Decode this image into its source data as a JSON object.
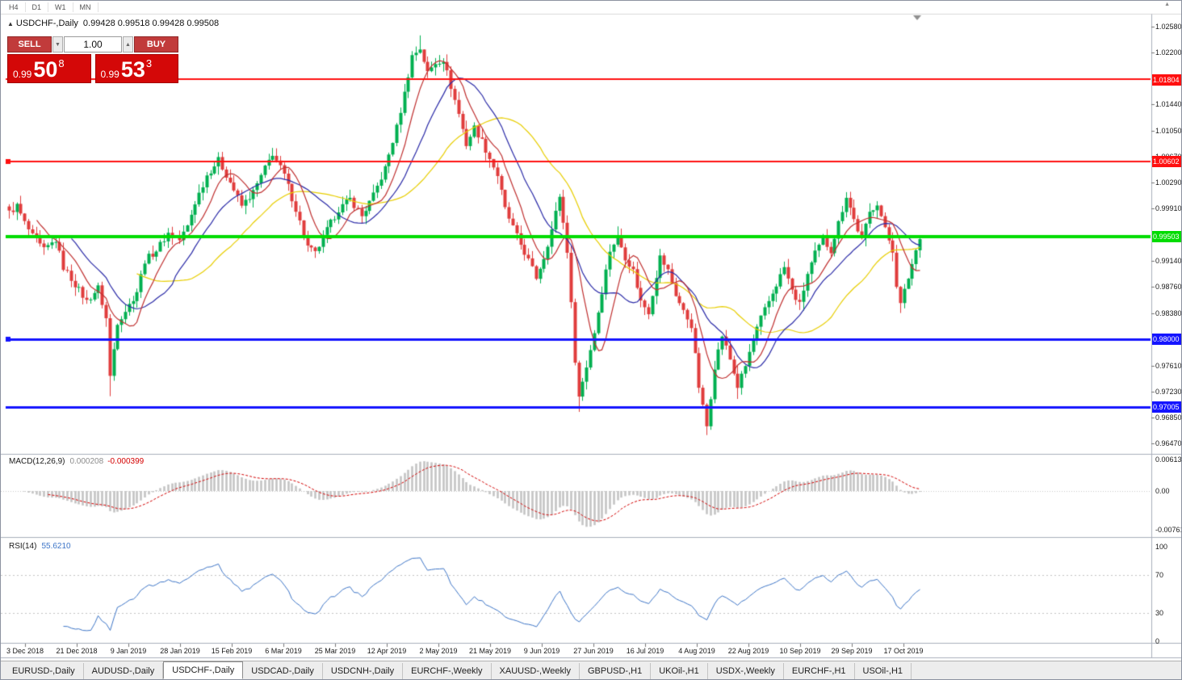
{
  "toolbar": {
    "timeframes": [
      "H4",
      "D1",
      "W1",
      "MN"
    ],
    "collapse_icon": "▲"
  },
  "chart": {
    "title_symbol": "USDCHF-,Daily",
    "ohlc": "0.99428 0.99518 0.99428 0.99508",
    "trade_panel": {
      "sell_label": "SELL",
      "buy_label": "BUY",
      "volume": "1.00",
      "bid": {
        "prefix": "0.99",
        "big": "50",
        "sup": "8"
      },
      "ask": {
        "prefix": "0.99",
        "big": "53",
        "sup": "3"
      }
    }
  },
  "chart_data": {
    "type": "candlestick",
    "symbol": "USDCHF-",
    "timeframe": "Daily",
    "title": "USDCHF-,Daily 0.99428 0.99518 0.99428 0.99508",
    "price_range": [
      0.9635,
      1.0272
    ],
    "bars": 236,
    "colors": {
      "bull": "#00B050",
      "bear": "#E03C3C"
    },
    "y_ticks": [
      "1.02580",
      "1.02200",
      "1.01440",
      "1.01050",
      "1.00670",
      "1.00290",
      "0.99910",
      "0.99140",
      "0.98760",
      "0.98380",
      "0.97610",
      "0.97230",
      "0.96850",
      "0.96470"
    ],
    "x_labels": [
      "3 Dec 2018",
      "21 Dec 2018",
      "9 Jan 2019",
      "28 Jan 2019",
      "15 Feb 2019",
      "6 Mar 2019",
      "25 Mar 2019",
      "12 Apr 2019",
      "2 May 2019",
      "21 May 2019",
      "9 Jun 2019",
      "27 Jun 2019",
      "16 Jul 2019",
      "4 Aug 2019",
      "22 Aug 2019",
      "10 Sep 2019",
      "29 Sep 2019",
      "17 Oct 2019"
    ],
    "anchors": [
      [
        0,
        0.9985
      ],
      [
        2,
        0.9995
      ],
      [
        4,
        0.997
      ],
      [
        6,
        0.995
      ],
      [
        9,
        0.993
      ],
      [
        12,
        0.9945
      ],
      [
        14,
        0.9905
      ],
      [
        17,
        0.988
      ],
      [
        20,
        0.9855
      ],
      [
        23,
        0.9875
      ],
      [
        25,
        0.983
      ],
      [
        26,
        0.9745
      ],
      [
        28,
        0.9825
      ],
      [
        31,
        0.985
      ],
      [
        33,
        0.987
      ],
      [
        35,
        0.9915
      ],
      [
        38,
        0.993
      ],
      [
        41,
        0.9955
      ],
      [
        44,
        0.9945
      ],
      [
        46,
        0.9965
      ],
      [
        48,
        1.0
      ],
      [
        51,
        1.004
      ],
      [
        54,
        1.0062
      ],
      [
        57,
        1.003
      ],
      [
        60,
        0.9995
      ],
      [
        63,
        1.0015
      ],
      [
        66,
        1.005
      ],
      [
        68,
        1.0072
      ],
      [
        71,
        1.004
      ],
      [
        74,
        0.999
      ],
      [
        77,
        0.9935
      ],
      [
        79,
        0.9925
      ],
      [
        82,
        0.996
      ],
      [
        85,
        0.999
      ],
      [
        88,
        1.0005
      ],
      [
        91,
        0.998
      ],
      [
        94,
        1.001
      ],
      [
        97,
        1.005
      ],
      [
        100,
        1.011
      ],
      [
        102,
        1.016
      ],
      [
        104,
        1.0215
      ],
      [
        106,
        1.0226
      ],
      [
        108,
        1.019
      ],
      [
        110,
        1.0205
      ],
      [
        112,
        1.021
      ],
      [
        114,
        1.017
      ],
      [
        116,
        1.013
      ],
      [
        118,
        1.0085
      ],
      [
        120,
        1.011
      ],
      [
        122,
        1.009
      ],
      [
        124,
        1.0065
      ],
      [
        126,
        1.004
      ],
      [
        128,
        0.999
      ],
      [
        131,
        0.995
      ],
      [
        134,
        0.9915
      ],
      [
        136,
        0.989
      ],
      [
        138,
        0.992
      ],
      [
        140,
        0.996
      ],
      [
        142,
        1.001
      ],
      [
        144,
        0.993
      ],
      [
        145,
        0.985
      ],
      [
        146,
        0.977
      ],
      [
        147,
        0.9715
      ],
      [
        149,
        0.976
      ],
      [
        151,
        0.981
      ],
      [
        153,
        0.987
      ],
      [
        155,
        0.993
      ],
      [
        157,
        0.995
      ],
      [
        159,
        0.992
      ],
      [
        161,
        0.99
      ],
      [
        163,
        0.9855
      ],
      [
        165,
        0.984
      ],
      [
        168,
        0.992
      ],
      [
        170,
        0.99
      ],
      [
        172,
        0.9865
      ],
      [
        174,
        0.984
      ],
      [
        176,
        0.982
      ],
      [
        177,
        0.9775
      ],
      [
        178,
        0.973
      ],
      [
        179,
        0.97
      ],
      [
        180,
        0.9672
      ],
      [
        182,
        0.976
      ],
      [
        184,
        0.9805
      ],
      [
        186,
        0.977
      ],
      [
        188,
        0.973
      ],
      [
        190,
        0.976
      ],
      [
        192,
        0.98
      ],
      [
        194,
        0.983
      ],
      [
        196,
        0.9855
      ],
      [
        198,
        0.988
      ],
      [
        200,
        0.9905
      ],
      [
        202,
        0.987
      ],
      [
        204,
        0.985
      ],
      [
        206,
        0.9895
      ],
      [
        208,
        0.9925
      ],
      [
        210,
        0.9945
      ],
      [
        212,
        0.993
      ],
      [
        214,
        0.997
      ],
      [
        216,
        1.001
      ],
      [
        218,
        0.9975
      ],
      [
        220,
        0.9945
      ],
      [
        222,
        0.9985
      ],
      [
        224,
        1.0
      ],
      [
        226,
        0.996
      ],
      [
        228,
        0.993
      ],
      [
        229,
        0.988
      ],
      [
        230,
        0.985
      ],
      [
        232,
        0.989
      ],
      [
        234,
        0.993
      ],
      [
        235,
        0.9951
      ]
    ],
    "spikes": [
      {
        "bar": 26,
        "low": 0.9716
      },
      {
        "bar": 106,
        "high": 1.0245
      },
      {
        "bar": 147,
        "low": 0.9693
      },
      {
        "bar": 180,
        "low": 0.9659
      },
      {
        "bar": 188,
        "low": 0.9712
      },
      {
        "bar": 230,
        "low": 0.9838
      }
    ],
    "hlines": [
      {
        "price": 1.01804,
        "label": "1.01804",
        "color": "#FF1010",
        "width": 2,
        "marker": false
      },
      {
        "price": 1.00602,
        "label": "1.00602",
        "color": "#FF1010",
        "width": 2,
        "marker": true
      },
      {
        "price": 0.99503,
        "label": "0.99503",
        "color": "#00DC00",
        "width": 4,
        "marker": false
      },
      {
        "price": 0.98,
        "label": "0.98000",
        "color": "#1414FF",
        "width": 3,
        "marker": true
      },
      {
        "price": 0.97005,
        "label": "0.97005",
        "color": "#1414FF",
        "width": 3,
        "marker": false
      }
    ],
    "moving_averages": [
      {
        "period": 34,
        "color": "#E8CE00"
      },
      {
        "period": 17,
        "color": "#2B2BA8"
      },
      {
        "period": 8,
        "color": "#C03030"
      }
    ],
    "macd": {
      "label": "MACD(12,26,9)",
      "value_main": "0.000208",
      "value_signal": "-0.000399",
      "axis": [
        "0.00613",
        "0.00",
        "-0.00761"
      ],
      "histogram_color": "#C4C4C4",
      "signal_color": "#D40000"
    },
    "rsi": {
      "label": "RSI(14)",
      "value": "55.6210",
      "axis": [
        "100",
        "70",
        "30",
        "0"
      ],
      "levels": [
        70,
        30
      ],
      "line_color": "#3E76C8"
    }
  },
  "tabs": [
    {
      "label": "EURUSD-,Daily",
      "active": false
    },
    {
      "label": "AUDUSD-,Daily",
      "active": false
    },
    {
      "label": "USDCHF-,Daily",
      "active": true
    },
    {
      "label": "USDCAD-,Daily",
      "active": false
    },
    {
      "label": "USDCNH-,Daily",
      "active": false
    },
    {
      "label": "EURCHF-,Weekly",
      "active": false
    },
    {
      "label": "XAUUSD-,Weekly",
      "active": false
    },
    {
      "label": "GBPUSD-,H1",
      "active": false
    },
    {
      "label": "UKOil-,H1",
      "active": false
    },
    {
      "label": "USDX-,Weekly",
      "active": false
    },
    {
      "label": "EURCHF-,H1",
      "active": false
    },
    {
      "label": "USOil-,H1",
      "active": false
    }
  ]
}
